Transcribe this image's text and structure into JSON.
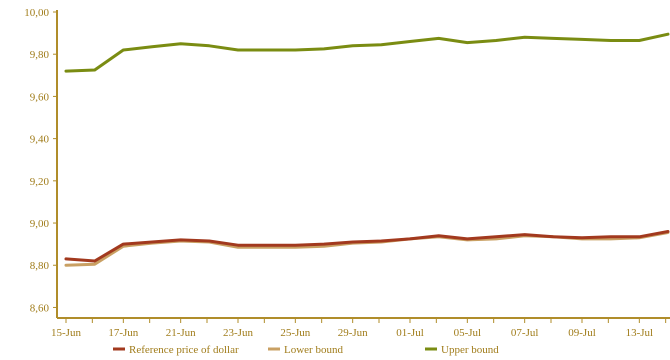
{
  "colors": {
    "axis": "#b08d2a",
    "grid": "#e6e6e6",
    "tick_text": "#a07c1a",
    "reference": "#a2391e",
    "lower": "#c9a063",
    "upper": "#7a8c12"
  },
  "chart_data": {
    "type": "line",
    "title": "",
    "xlabel": "",
    "ylabel": "",
    "ylim": [
      8.55,
      10.0
    ],
    "y_ticks": [
      "8,60",
      "8,80",
      "9,00",
      "9,20",
      "9,40",
      "9,60",
      "9,80",
      "10,00"
    ],
    "y_tick_values": [
      8.6,
      8.8,
      9.0,
      9.2,
      9.4,
      9.6,
      9.8,
      10.0
    ],
    "x_tick_labels": [
      "15-Jun",
      "17-Jun",
      "21-Jun",
      "23-Jun",
      "25-Jun",
      "29-Jun",
      "01-Jul",
      "05-Jul",
      "07-Jul",
      "09-Jul",
      "13-Jul"
    ],
    "x_tick_index": [
      0,
      2,
      4,
      6,
      8,
      10,
      12,
      14,
      16,
      18,
      20
    ],
    "x": [
      "15-Jun",
      "16-Jun",
      "17-Jun",
      "18-Jun",
      "21-Jun",
      "22-Jun",
      "23-Jun",
      "24-Jun",
      "25-Jun",
      "28-Jun",
      "29-Jun",
      "30-Jun",
      "01-Jul",
      "02-Jul",
      "05-Jul",
      "06-Jul",
      "07-Jul",
      "08-Jul",
      "09-Jul",
      "12-Jul",
      "13-Jul",
      "14-Jul"
    ],
    "grid": false,
    "legend_position": "bottom",
    "series": [
      {
        "name": "Reference price of dollar",
        "color_key": "reference",
        "values": [
          8.83,
          8.82,
          8.9,
          8.91,
          8.92,
          8.915,
          8.895,
          8.895,
          8.895,
          8.9,
          8.91,
          8.915,
          8.925,
          8.94,
          8.925,
          8.935,
          8.945,
          8.935,
          8.93,
          8.935,
          8.935,
          8.96
        ]
      },
      {
        "name": "Lower bound",
        "color_key": "lower",
        "values": [
          8.8,
          8.805,
          8.89,
          8.905,
          8.915,
          8.91,
          8.885,
          8.885,
          8.885,
          8.89,
          8.905,
          8.91,
          8.925,
          8.935,
          8.92,
          8.925,
          8.94,
          8.935,
          8.925,
          8.925,
          8.93,
          8.955
        ]
      },
      {
        "name": "Upper bound",
        "color_key": "upper",
        "values": [
          9.72,
          9.725,
          9.82,
          9.835,
          9.85,
          9.84,
          9.82,
          9.82,
          9.82,
          9.825,
          9.84,
          9.845,
          9.86,
          9.875,
          9.855,
          9.865,
          9.88,
          9.875,
          9.87,
          9.865,
          9.865,
          9.895
        ]
      }
    ]
  }
}
